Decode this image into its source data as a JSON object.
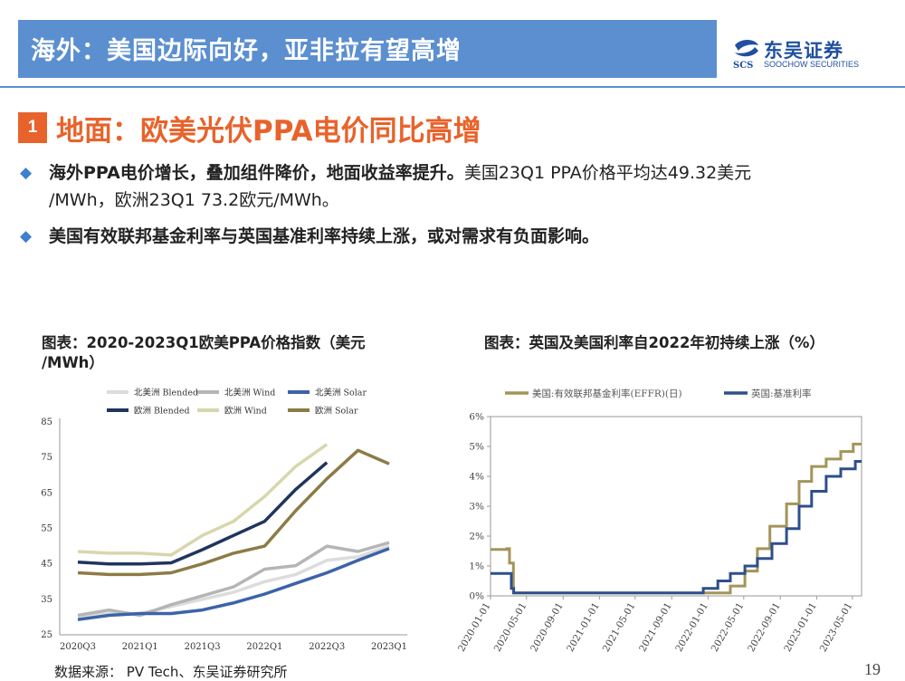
{
  "header": {
    "title": "海外：美国边际向好，亚非拉有望高增"
  },
  "logo": {
    "cn": "东吴证券",
    "en": "SOOCHOW SECURITIES",
    "icon_text": "SCS"
  },
  "section": {
    "number": "1",
    "title": "地面：欧美光伏PPA电价同比高增"
  },
  "bullets": {
    "b1_bold": "海外PPA电价增长，叠加组件降价，地面收益率提升。",
    "b1_rest": "美国23Q1 PPA价格平均达49.32美元",
    "b1_line2": "/MWh，欧洲23Q1 73.2欧元/MWh。",
    "b2": "美国有效联邦基金利率与英国基准利率持续上涨，或对需求有负面影响。"
  },
  "chart1_title_l1": "图表：2020-2023Q1欧美PPA价格指数（美元",
  "chart1_title_l2": "/MWh）",
  "chart2_title": "图表：英国及美国利率自2022年初持续上涨（%）",
  "footer": {
    "source": "数据来源：  PV Tech、东吴证券研究所",
    "page": "19"
  },
  "colors": {
    "header": "#5b8fd0",
    "accent": "#e8632b",
    "bullet": "#3d7fd0",
    "na_blended": "#dcdcdc",
    "na_wind": "#b5b5b5",
    "na_solar": "#3b64a8",
    "eu_blended": "#1f355e",
    "eu_wind": "#d8d6ad",
    "eu_solar": "#8c7b45",
    "us_rate": "#a39558",
    "uk_rate": "#2e4f8c"
  },
  "chart_data": [
    {
      "type": "line",
      "title": "图表：2020-2023Q1欧美PPA价格指数（美元/MWh）",
      "categories": [
        "2020Q3",
        "2020Q4",
        "2021Q1",
        "2021Q2",
        "2021Q3",
        "2021Q4",
        "2022Q1",
        "2022Q2",
        "2022Q3",
        "2022Q4",
        "2023Q1"
      ],
      "tick_labels": [
        "2020Q3",
        "2021Q1",
        "2021Q3",
        "2022Q1",
        "2022Q3",
        "2023Q1"
      ],
      "ylim": [
        25,
        85
      ],
      "yticks": [
        25,
        35,
        45,
        55,
        65,
        75,
        85
      ],
      "legend_position": "top",
      "series": [
        {
          "name": "北美洲 Blended",
          "values": [
            30,
            31,
            31,
            33,
            35,
            37,
            40,
            42,
            46,
            47,
            50
          ],
          "color": "#dcdcdc"
        },
        {
          "name": "北美洲 Wind",
          "values": [
            30.5,
            32,
            30.5,
            33.5,
            36,
            38.5,
            43.5,
            44.5,
            50,
            48.5,
            51
          ],
          "color": "#b5b5b5"
        },
        {
          "name": "北美洲 Solar",
          "values": [
            29.3,
            30.5,
            31,
            31,
            32,
            34,
            36.5,
            39.5,
            42.5,
            46,
            49.32
          ],
          "color": "#3b64a8"
        },
        {
          "name": "欧洲 Blended",
          "values": [
            45.5,
            45,
            45,
            45.3,
            49,
            53,
            57,
            66,
            73.6,
            null,
            null
          ],
          "color": "#1f355e"
        },
        {
          "name": "欧洲 Wind",
          "values": [
            48.5,
            48,
            48,
            47.5,
            53,
            57,
            64,
            72.5,
            78.7,
            null,
            null
          ],
          "color": "#d8d6ad"
        },
        {
          "name": "欧洲 Solar",
          "values": [
            42.5,
            42,
            42,
            42.5,
            45,
            48,
            50,
            60,
            69,
            77,
            73.2
          ],
          "color": "#8c7b45"
        }
      ]
    },
    {
      "type": "line",
      "title": "图表：英国及美国利率自2022年初持续上涨（%）",
      "xlabel": "",
      "ylabel": "",
      "ylim": [
        0,
        6
      ],
      "yticks": [
        "0%",
        "1%",
        "2%",
        "3%",
        "4%",
        "5%",
        "6%"
      ],
      "xlim": [
        "2020-01-01",
        "2023-06-01"
      ],
      "tick_labels": [
        "2020-01-01",
        "2020-05-01",
        "2020-09-01",
        "2021-01-01",
        "2021-05-01",
        "2021-09-01",
        "2022-01-01",
        "2022-05-01",
        "2022-09-01",
        "2023-01-01",
        "2023-05-01"
      ],
      "legend_position": "top",
      "series": [
        {
          "name": "美国:有效联邦基金利率(EFFR)(日)",
          "color": "#a39558",
          "points": [
            [
              "2020-01-01",
              1.55
            ],
            [
              "2020-02-25",
              1.58
            ],
            [
              "2020-03-05",
              1.1
            ],
            [
              "2020-03-18",
              0.1
            ],
            [
              "2022-03-17",
              0.33
            ],
            [
              "2022-05-05",
              0.83
            ],
            [
              "2022-06-16",
              1.58
            ],
            [
              "2022-07-28",
              2.33
            ],
            [
              "2022-09-22",
              3.08
            ],
            [
              "2022-11-03",
              3.83
            ],
            [
              "2022-12-15",
              4.33
            ],
            [
              "2023-02-02",
              4.58
            ],
            [
              "2023-03-23",
              4.83
            ],
            [
              "2023-05-04",
              5.08
            ],
            [
              "2023-06-01",
              5.08
            ]
          ]
        },
        {
          "name": "英国:基准利率",
          "color": "#2e4f8c",
          "points": [
            [
              "2020-01-01",
              0.75
            ],
            [
              "2020-03-11",
              0.25
            ],
            [
              "2020-03-19",
              0.1
            ],
            [
              "2021-12-16",
              0.25
            ],
            [
              "2022-02-03",
              0.5
            ],
            [
              "2022-03-17",
              0.75
            ],
            [
              "2022-05-05",
              1.0
            ],
            [
              "2022-06-16",
              1.25
            ],
            [
              "2022-08-04",
              1.75
            ],
            [
              "2022-09-22",
              2.25
            ],
            [
              "2022-11-03",
              3.0
            ],
            [
              "2022-12-15",
              3.5
            ],
            [
              "2023-02-02",
              4.0
            ],
            [
              "2023-03-23",
              4.25
            ],
            [
              "2023-05-11",
              4.5
            ],
            [
              "2023-06-01",
              4.5
            ]
          ]
        }
      ]
    }
  ]
}
